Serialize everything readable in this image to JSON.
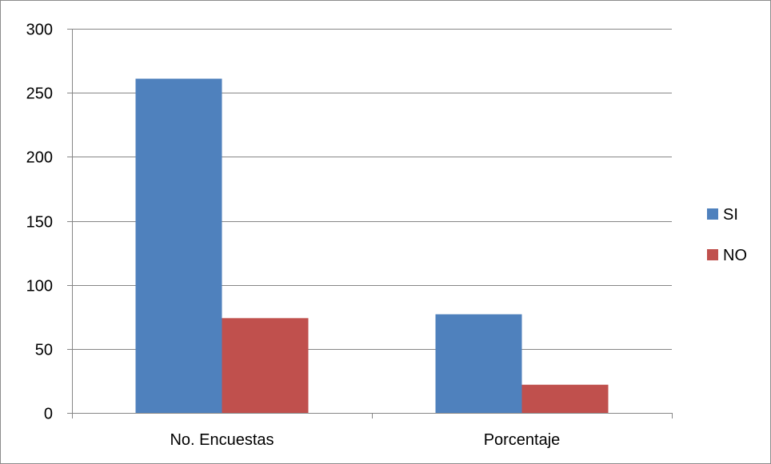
{
  "chart_data": {
    "type": "bar",
    "categories": [
      "No. Encuestas",
      "Porcentaje"
    ],
    "series": [
      {
        "name": "SI",
        "values": [
          261,
          77
        ],
        "color": "#4f81bd"
      },
      {
        "name": "NO",
        "values": [
          74,
          22
        ],
        "color": "#c0504d"
      }
    ],
    "ylim": [
      0,
      300
    ],
    "yticks": [
      0,
      50,
      100,
      150,
      200,
      250,
      300
    ],
    "grid": true,
    "legend": "right"
  }
}
